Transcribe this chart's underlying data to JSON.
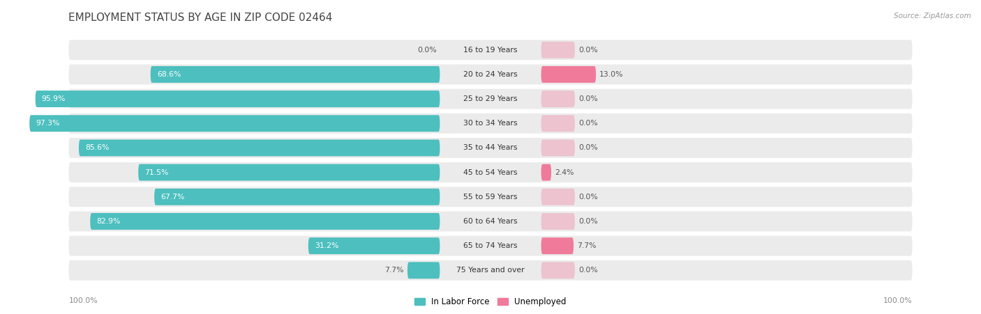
{
  "title": "EMPLOYMENT STATUS BY AGE IN ZIP CODE 02464",
  "source": "Source: ZipAtlas.com",
  "categories": [
    "16 to 19 Years",
    "20 to 24 Years",
    "25 to 29 Years",
    "30 to 34 Years",
    "35 to 44 Years",
    "45 to 54 Years",
    "55 to 59 Years",
    "60 to 64 Years",
    "65 to 74 Years",
    "75 Years and over"
  ],
  "labor_force": [
    0.0,
    68.6,
    95.9,
    97.3,
    85.6,
    71.5,
    67.7,
    82.9,
    31.2,
    7.7
  ],
  "unemployed": [
    0.0,
    13.0,
    0.0,
    0.0,
    0.0,
    2.4,
    0.0,
    0.0,
    7.7,
    0.0
  ],
  "labor_force_color": "#4dbfbf",
  "unemployed_color": "#f07a9a",
  "row_bg_color": "#ebebeb",
  "title_color": "#444444",
  "source_color": "#999999",
  "label_inside_color": "#ffffff",
  "label_outside_color": "#555555",
  "axis_label_color": "#888888",
  "max_value": 100.0,
  "legend_labor": "In Labor Force",
  "legend_unemployed": "Unemployed",
  "title_fontsize": 11,
  "bar_label_fontsize": 7.8,
  "cat_label_fontsize": 7.8,
  "legend_fontsize": 8.5,
  "source_fontsize": 7.5,
  "axis_fontsize": 7.8
}
